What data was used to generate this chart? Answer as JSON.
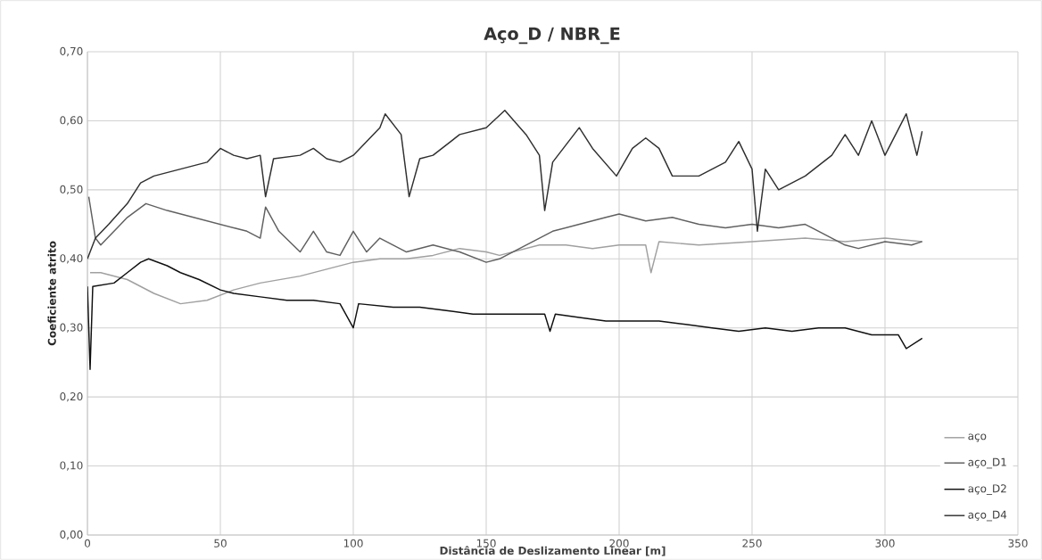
{
  "chart_data": {
    "type": "line",
    "title": "Aço_D / NBR_E",
    "xlabel": "Distância de Deslizamento Linear [m]",
    "ylabel": "Coeficiente atrito",
    "xlim": [
      0,
      350
    ],
    "xticks": [
      0,
      50,
      100,
      150,
      200,
      250,
      300,
      350
    ],
    "ylim": [
      0,
      0.7
    ],
    "yticks": [
      {
        "value": 0,
        "label": "0,00"
      },
      {
        "value": 0.1,
        "label": "0,10"
      },
      {
        "value": 0.2,
        "label": "0,20"
      },
      {
        "value": 0.3,
        "label": "0,30"
      },
      {
        "value": 0.4,
        "label": "0,40"
      },
      {
        "value": 0.5,
        "label": "0,50"
      },
      {
        "value": 0.6,
        "label": "0,60"
      },
      {
        "value": 0.7,
        "label": "0,70"
      }
    ],
    "grid": true,
    "legend": "bottom right",
    "marker": "none",
    "line_style": "solid",
    "series": [
      {
        "name": "aço",
        "color": "#a0a0a0",
        "x": [
          1,
          5,
          15,
          25,
          35,
          45,
          55,
          65,
          80,
          90,
          100,
          110,
          120,
          130,
          140,
          150,
          155,
          170,
          180,
          190,
          200,
          210,
          212,
          215,
          230,
          250,
          270,
          285,
          300,
          314
        ],
        "values": [
          0.38,
          0.38,
          0.37,
          0.35,
          0.335,
          0.34,
          0.355,
          0.365,
          0.375,
          0.385,
          0.395,
          0.4,
          0.4,
          0.405,
          0.415,
          0.41,
          0.405,
          0.42,
          0.42,
          0.415,
          0.42,
          0.42,
          0.38,
          0.425,
          0.42,
          0.425,
          0.43,
          0.425,
          0.43,
          0.425
        ]
      },
      {
        "name": "aço_D1",
        "color": "#606060",
        "x": [
          0.5,
          3,
          5,
          10,
          15,
          22,
          30,
          40,
          50,
          60,
          65,
          67,
          72,
          80,
          85,
          90,
          95,
          100,
          105,
          110,
          120,
          130,
          140,
          150,
          155,
          165,
          175,
          185,
          195,
          200,
          210,
          220,
          230,
          240,
          250,
          260,
          270,
          275,
          285,
          290,
          300,
          310,
          314
        ],
        "values": [
          0.49,
          0.43,
          0.42,
          0.44,
          0.46,
          0.48,
          0.47,
          0.46,
          0.45,
          0.44,
          0.43,
          0.475,
          0.44,
          0.41,
          0.44,
          0.41,
          0.405,
          0.44,
          0.41,
          0.43,
          0.41,
          0.42,
          0.41,
          0.395,
          0.4,
          0.42,
          0.44,
          0.45,
          0.46,
          0.465,
          0.455,
          0.46,
          0.45,
          0.445,
          0.45,
          0.445,
          0.45,
          0.44,
          0.42,
          0.415,
          0.425,
          0.42,
          0.425
        ]
      },
      {
        "name": "aço_D2",
        "color": "#101010",
        "x": [
          0,
          1,
          2,
          10,
          15,
          20,
          23,
          30,
          35,
          42,
          50,
          55,
          65,
          75,
          85,
          95,
          100,
          102,
          115,
          125,
          135,
          145,
          155,
          165,
          172,
          174,
          176,
          185,
          195,
          205,
          215,
          225,
          235,
          245,
          255,
          265,
          275,
          285,
          295,
          305,
          308,
          314
        ],
        "values": [
          0.36,
          0.24,
          0.36,
          0.365,
          0.38,
          0.395,
          0.4,
          0.39,
          0.38,
          0.37,
          0.355,
          0.35,
          0.345,
          0.34,
          0.34,
          0.335,
          0.3,
          0.335,
          0.33,
          0.33,
          0.325,
          0.32,
          0.32,
          0.32,
          0.32,
          0.295,
          0.32,
          0.315,
          0.31,
          0.31,
          0.31,
          0.305,
          0.3,
          0.295,
          0.3,
          0.295,
          0.3,
          0.3,
          0.29,
          0.29,
          0.27,
          0.285
        ]
      },
      {
        "name": "aço_D4",
        "color": "#303030",
        "x": [
          0,
          3,
          8,
          15,
          20,
          25,
          35,
          45,
          50,
          55,
          60,
          65,
          67,
          70,
          80,
          85,
          90,
          95,
          100,
          105,
          110,
          112,
          118,
          121,
          125,
          130,
          140,
          150,
          157,
          165,
          170,
          172,
          175,
          185,
          190,
          199,
          205,
          210,
          215,
          220,
          230,
          240,
          245,
          250,
          252,
          255,
          260,
          265,
          270,
          280,
          285,
          290,
          295,
          300,
          308,
          312,
          314
        ],
        "values": [
          0.4,
          0.43,
          0.45,
          0.48,
          0.51,
          0.52,
          0.53,
          0.54,
          0.56,
          0.55,
          0.545,
          0.55,
          0.49,
          0.545,
          0.55,
          0.56,
          0.545,
          0.54,
          0.55,
          0.57,
          0.59,
          0.61,
          0.58,
          0.49,
          0.545,
          0.55,
          0.58,
          0.59,
          0.615,
          0.58,
          0.55,
          0.47,
          0.54,
          0.59,
          0.56,
          0.52,
          0.56,
          0.575,
          0.56,
          0.52,
          0.52,
          0.54,
          0.57,
          0.53,
          0.44,
          0.53,
          0.5,
          0.51,
          0.52,
          0.55,
          0.58,
          0.55,
          0.6,
          0.55,
          0.61,
          0.55,
          0.585
        ]
      }
    ]
  }
}
